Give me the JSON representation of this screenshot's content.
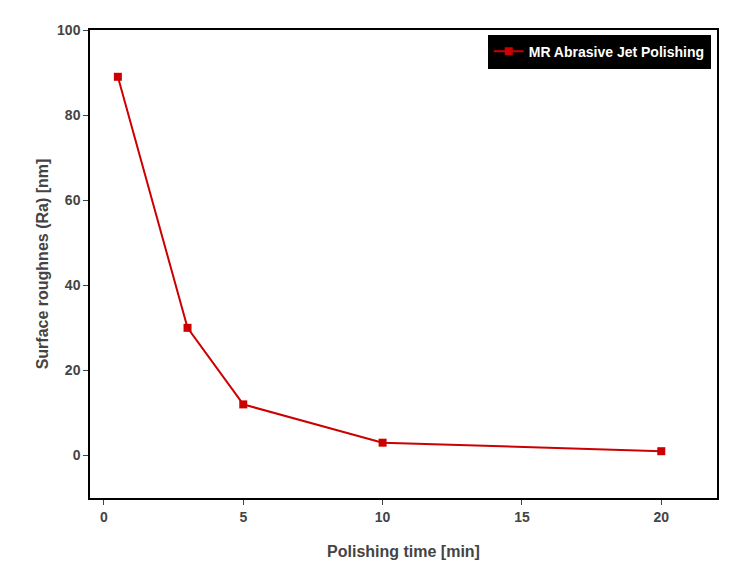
{
  "chart_data": {
    "type": "line",
    "x": [
      0.5,
      3,
      5,
      10,
      20
    ],
    "series": [
      {
        "name": "MR Abrasive Jet Polishing",
        "color": "#CC0000",
        "marker": "square",
        "line_style": "solid",
        "values": [
          89,
          30,
          12,
          3,
          1
        ]
      }
    ],
    "xlabel": "Polishing time [min]",
    "ylabel": "Surface roughnes (Ra) [nm]",
    "xlim": [
      -0.5,
      22
    ],
    "ylim": [
      -10,
      100
    ],
    "xticks": [
      0,
      5,
      10,
      15,
      20
    ],
    "yticks": [
      0,
      20,
      40,
      60,
      80,
      100
    ],
    "grid": false,
    "legend": "upper right"
  }
}
